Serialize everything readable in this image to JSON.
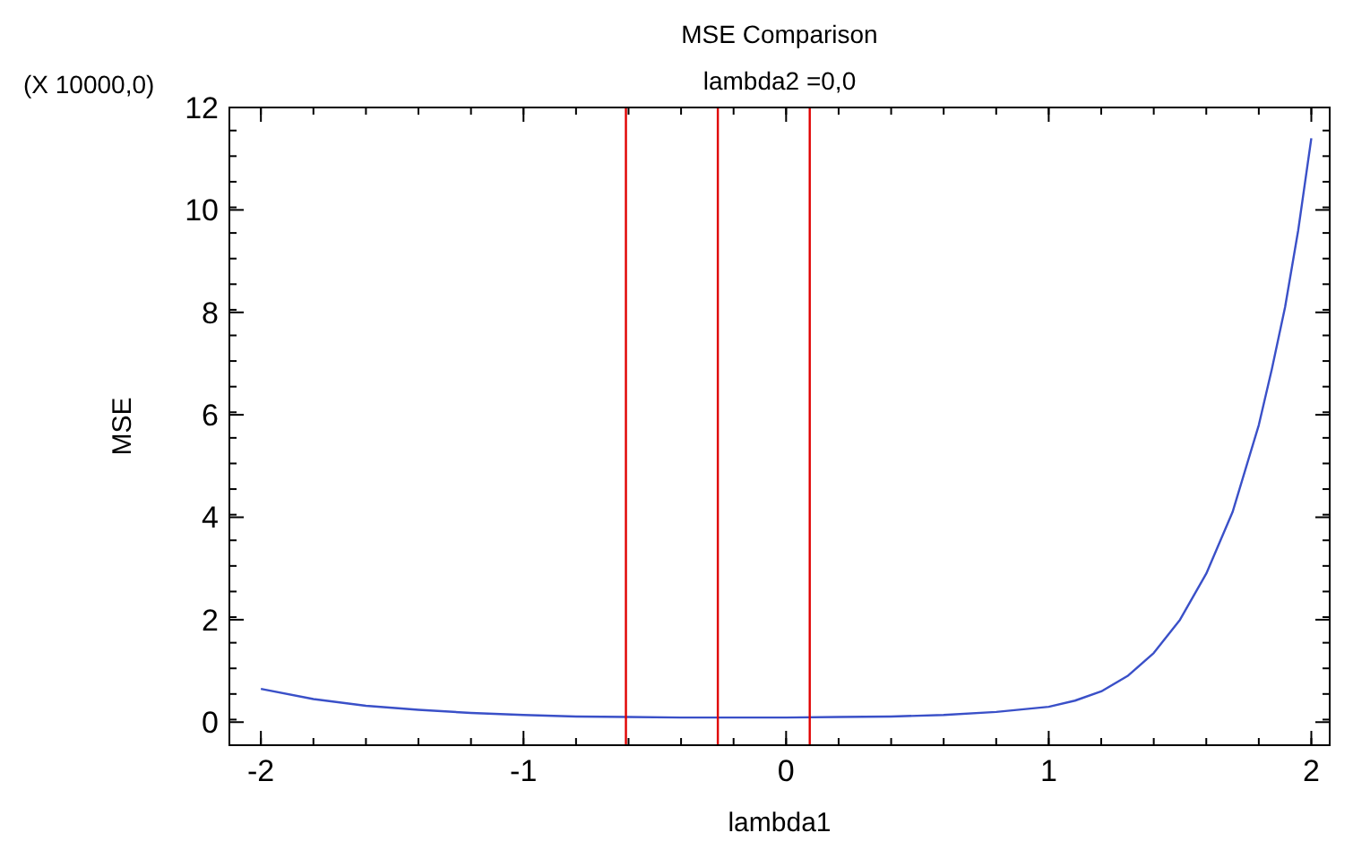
{
  "chart_data": {
    "type": "line",
    "title": "MSE Comparison",
    "subtitle": "lambda2 =0,0",
    "xlabel": "lambda1",
    "ylabel": "MSE",
    "annotations": [
      "(X 10000,0)"
    ],
    "x": [
      -2,
      -1.8,
      -1.6,
      -1.4,
      -1.2,
      -1,
      -0.8,
      -0.6,
      -0.4,
      -0.2,
      0,
      0.2,
      0.4,
      0.6,
      0.8,
      1,
      1.1,
      1.2,
      1.3,
      1.4,
      1.5,
      1.6,
      1.7,
      1.8,
      1.85,
      1.9,
      1.95,
      2
    ],
    "series": [
      {
        "color": "#3a50c8",
        "values": [
          0.65,
          0.45,
          0.32,
          0.24,
          0.18,
          0.14,
          0.11,
          0.1,
          0.09,
          0.09,
          0.09,
          0.1,
          0.11,
          0.14,
          0.2,
          0.3,
          0.42,
          0.6,
          0.9,
          1.35,
          2.0,
          2.9,
          4.1,
          5.8,
          6.9,
          8.1,
          9.6,
          11.4
        ]
      }
    ],
    "xlim": [
      -2.12,
      2.07
    ],
    "ylim": [
      -0.45,
      12
    ],
    "xticks": [
      -2,
      -1,
      0,
      1,
      2
    ],
    "yticks": [
      0,
      2,
      4,
      6,
      8,
      10,
      12
    ],
    "ref_lines": [
      {
        "axis": "x",
        "value": -0.61,
        "color": "#e00000"
      },
      {
        "axis": "x",
        "value": -0.26,
        "color": "#e00000"
      },
      {
        "axis": "x",
        "value": 0.09,
        "color": "#e00000"
      }
    ],
    "grid": false,
    "marker": "none",
    "line_style": "solid"
  }
}
